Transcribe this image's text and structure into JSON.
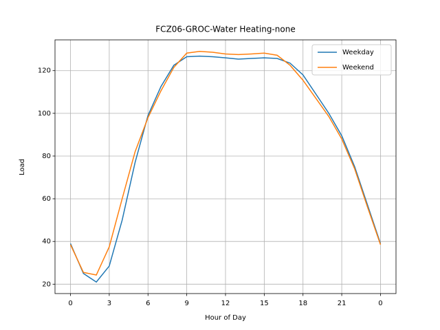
{
  "chart_data": {
    "type": "line",
    "title": "FCZ06-GROC-Water Heating-none",
    "x_label": "Hour of Day",
    "y_label": "Load",
    "x": [
      0,
      1,
      2,
      3,
      4,
      5,
      6,
      7,
      8,
      9,
      10,
      11,
      12,
      13,
      14,
      15,
      16,
      17,
      18,
      19,
      20,
      21,
      22,
      23,
      24
    ],
    "series": [
      {
        "name": "Weekday",
        "color": "#1f77b4",
        "values": [
          39,
          25,
          21,
          28.5,
          50,
          77,
          99,
          112.5,
          122.5,
          126.5,
          126.8,
          126.5,
          126,
          125.4,
          125.7,
          126,
          125.7,
          123.5,
          118,
          109,
          100,
          89.5,
          75,
          57,
          39
        ]
      },
      {
        "name": "Weekend",
        "color": "#ff7f0e",
        "values": [
          38.5,
          25.5,
          24.3,
          37.5,
          60,
          82,
          98,
          110.5,
          121.5,
          128.2,
          129,
          128.6,
          127.8,
          127.5,
          127.8,
          128.2,
          127.2,
          122.5,
          115.5,
          107,
          98.5,
          88,
          74,
          56,
          38.5
        ]
      }
    ],
    "xlim": [
      -1.2,
      25.2
    ],
    "ylim": [
      15.6,
      134.4
    ],
    "xticks": [
      0,
      3,
      6,
      9,
      12,
      15,
      18,
      21,
      {
        "value": 24,
        "label": "0"
      }
    ],
    "yticks": [
      20,
      40,
      60,
      80,
      100,
      120
    ],
    "grid": true,
    "legend": "upper right"
  }
}
